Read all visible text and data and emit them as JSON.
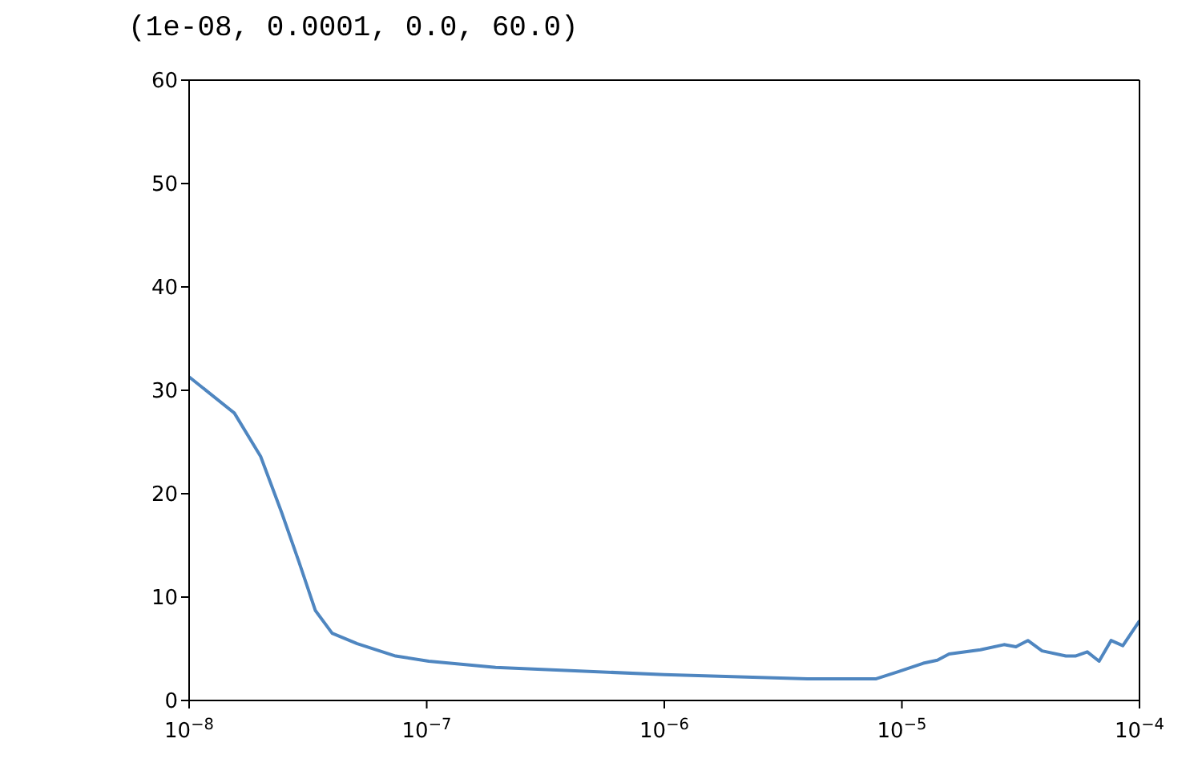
{
  "chart_data": {
    "type": "line",
    "title": "(1e-08, 0.0001, 0.0, 60.0)",
    "log": "x",
    "legend": false,
    "marker": "none",
    "line_style": "solid",
    "xlim": [
      1e-08,
      0.0001
    ],
    "ylim": [
      0,
      60
    ],
    "xticks": [
      {
        "value": 1e-08,
        "label": "10$^{−8}$"
      },
      {
        "value": 1e-07,
        "label": "10$^{−7}$"
      },
      {
        "value": 1e-06,
        "label": "10$^{−6}$"
      },
      {
        "value": 1e-05,
        "label": "10$^{−5}$"
      },
      {
        "value": 0.0001,
        "label": "10$^{−4}$"
      }
    ],
    "yticks": [
      0,
      10,
      20,
      30,
      40,
      50,
      60
    ],
    "series": [
      {
        "color": "#4f86c0",
        "x": [
          1e-08,
          1.55e-08,
          2e-08,
          2.45e-08,
          2.9e-08,
          3.4e-08,
          4e-08,
          5.1e-08,
          7.4e-08,
          1.02e-07,
          1.95e-07,
          1e-06,
          4e-06,
          7.8e-06,
          9.7e-06,
          1.23e-05,
          1.41e-05,
          1.58e-05,
          2.14e-05,
          2.69e-05,
          3.02e-05,
          3.39e-05,
          3.89e-05,
          4.9e-05,
          5.37e-05,
          6.03e-05,
          6.76e-05,
          7.59e-05,
          8.51e-05,
          0.0001
        ],
        "values": [
          31.3,
          27.8,
          23.6,
          18.2,
          13.4,
          8.7,
          6.5,
          5.5,
          4.3,
          3.8,
          3.2,
          2.5,
          2.1,
          2.1,
          2.8,
          3.6,
          3.9,
          4.5,
          4.9,
          5.4,
          5.2,
          5.8,
          4.8,
          4.3,
          4.3,
          4.7,
          3.8,
          5.8,
          5.3,
          7.7
        ]
      }
    ]
  }
}
